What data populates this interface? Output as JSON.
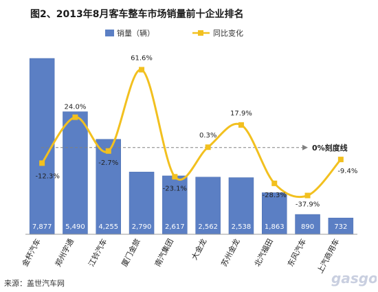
{
  "chart_data": {
    "type": "bar",
    "title": "图2、2013年8月客车整车市场销量前十企业排名",
    "categories": [
      "金杯汽车",
      "郑州宇通",
      "江铃汽车",
      "厦门金旅",
      "南汽集团",
      "大金龙",
      "苏州金龙",
      "北汽福田",
      "东风汽车",
      "上汽商用车"
    ],
    "series": [
      {
        "name": "销量（辆）",
        "type": "bar",
        "values": [
          7877,
          5490,
          4255,
          2790,
          2617,
          2562,
          2538,
          1863,
          890,
          732
        ],
        "labels": [
          "7,877",
          "5,490",
          "4,255",
          "2,790",
          "2,617",
          "2,562",
          "2,538",
          "1,863",
          "890",
          "732"
        ]
      },
      {
        "name": "同比变化",
        "type": "line",
        "values": [
          -12.3,
          24.0,
          -2.7,
          61.6,
          -23.1,
          0.3,
          17.9,
          -28.3,
          -37.9,
          -9.4
        ],
        "labels": [
          "-12.3%",
          "24.0%",
          "-2.7%",
          "61.6%",
          "-23.1%",
          "0.3%",
          "17.9%",
          "-28.3%",
          "-37.9%",
          "-9.4%"
        ]
      }
    ],
    "bar_ylim": [
      0,
      9000
    ],
    "line_ylim": [
      -55,
      70
    ],
    "reference_line": {
      "value": 0,
      "label": "0%刻度线"
    },
    "legend": "top-center",
    "grid": false,
    "colors": {
      "bar": "#5b7fc4",
      "bar_label": "#ffffff",
      "line": "#f2c01f",
      "marker": "#f2c01f",
      "ref": "#808080"
    }
  },
  "source": "来源：盖世汽车网",
  "watermark": "gasgoo"
}
